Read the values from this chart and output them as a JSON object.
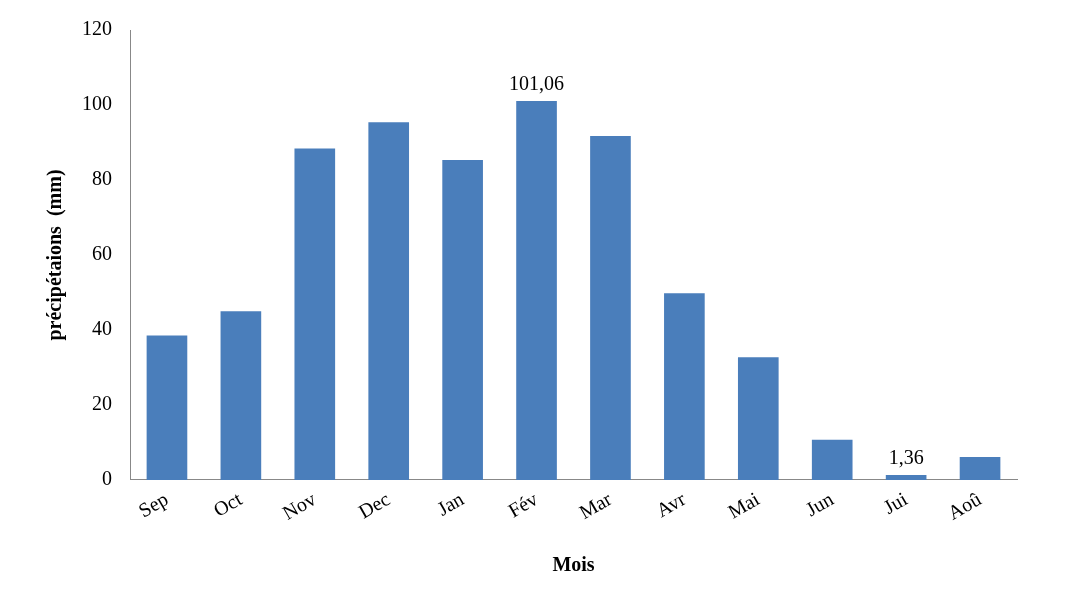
{
  "chart_data": {
    "type": "bar",
    "xlabel": "Mois",
    "ylabel": "précipétaions  (mm)",
    "categories": [
      "Sep",
      "Oct",
      "Nov",
      "Dec",
      "Jan",
      "Fév",
      "Mar",
      "Avr",
      "Mai",
      "Jun",
      "Jui",
      "Aoû"
    ],
    "values": [
      38.5,
      45,
      88.4,
      95.4,
      85.3,
      101.06,
      91.7,
      49.8,
      32.7,
      10.7,
      1.36,
      6.1
    ],
    "value_labels": [
      null,
      null,
      null,
      null,
      null,
      "101,06",
      null,
      null,
      null,
      null,
      "1,36",
      null
    ],
    "color": "#4a7ebb",
    "ylim": [
      0,
      120
    ],
    "yticks": [
      0,
      20,
      40,
      60,
      80,
      100,
      120
    ],
    "grid": false,
    "legend": false
  }
}
